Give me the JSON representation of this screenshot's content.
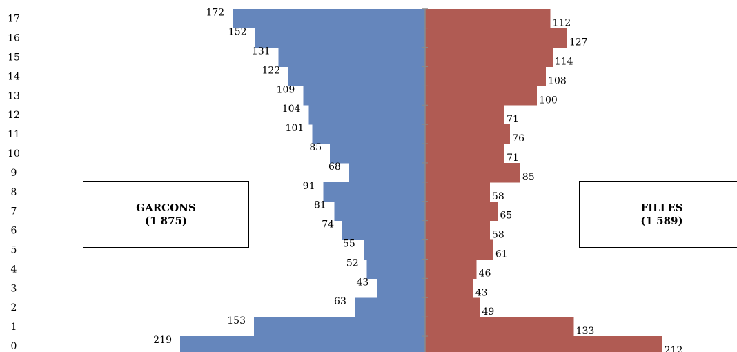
{
  "chart_data": {
    "type": "bar",
    "orientation": "horizontal-population-pyramid",
    "categories": [
      "0",
      "1",
      "2",
      "3",
      "4",
      "5",
      "6",
      "7",
      "8",
      "9",
      "10",
      "11",
      "12",
      "13",
      "14",
      "15",
      "16",
      "17"
    ],
    "series": [
      {
        "name": "GARCONS",
        "color": "#6586BC",
        "values": [
          219,
          153,
          63,
          43,
          52,
          55,
          74,
          81,
          91,
          68,
          85,
          101,
          104,
          109,
          122,
          131,
          152,
          172
        ]
      },
      {
        "name": "FILLES",
        "color": "#B05B53",
        "values": [
          212,
          133,
          49,
          43,
          46,
          61,
          58,
          65,
          58,
          85,
          71,
          76,
          71,
          100,
          108,
          114,
          127,
          112
        ]
      }
    ],
    "legend": {
      "boys": {
        "label": "GARCONS",
        "total": "(1 875)"
      },
      "girls": {
        "label": "FILLES",
        "total": "(1 589)"
      }
    },
    "title": "",
    "xlabel": "",
    "ylabel": "",
    "grid": false
  }
}
